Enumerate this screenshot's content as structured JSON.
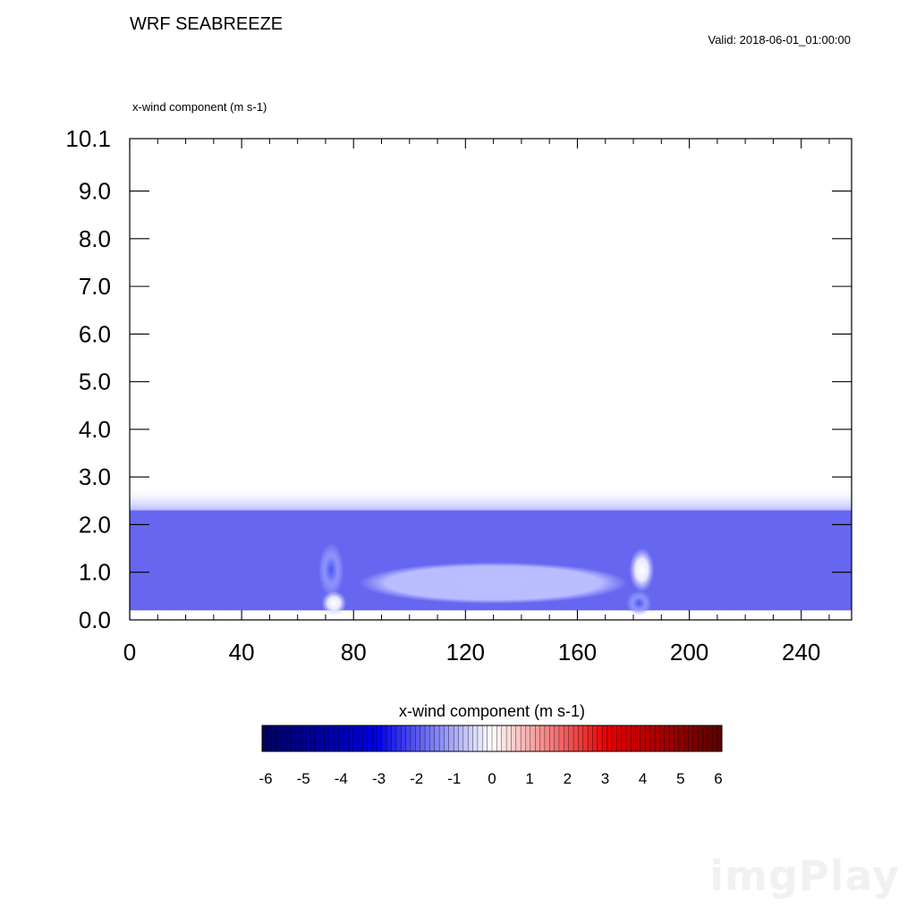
{
  "header": {
    "title": "WRF SEABREEZE",
    "valid": "Valid: 2018-06-01_01:00:00",
    "field_label": "x-wind component   (m s-1)"
  },
  "chart_data": {
    "type": "heatmap",
    "xlim": [
      0,
      258
    ],
    "ylim": [
      0,
      10.1
    ],
    "x_ticks": [
      0,
      40,
      80,
      120,
      160,
      200,
      240
    ],
    "x_tick_labels": [
      "0",
      "40",
      "80",
      "120",
      "160",
      "200",
      "240"
    ],
    "y_ticks": [
      0,
      1,
      2,
      3,
      4,
      5,
      6,
      7,
      8,
      9,
      10.1
    ],
    "y_tick_labels": [
      "0.0",
      "1.0",
      "2.0",
      "3.0",
      "4.0",
      "5.0",
      "6.0",
      "7.0",
      "8.0",
      "9.0",
      "10.1"
    ],
    "field": {
      "units": "m s-1",
      "bottom_layer_top": 0.2,
      "mixed_layer_value": -1.8,
      "mixed_layer_top": 2.3,
      "fade_top": 2.8,
      "features": [
        {
          "x": 72,
          "y_top": 1.5,
          "y_bottom": 0.6,
          "value": -3.2
        },
        {
          "x": 73,
          "y_top": 0.5,
          "y_bottom": 0.2,
          "value": 0.0
        },
        {
          "x": 130,
          "y_top": 1.1,
          "y_bottom": 0.45,
          "value": -1.3
        },
        {
          "x": 183,
          "y_top": 1.4,
          "y_bottom": 0.7,
          "value": 0.0
        },
        {
          "x": 182,
          "y_top": 0.5,
          "y_bottom": 0.2,
          "value": -3.2
        }
      ]
    },
    "colorbar": {
      "title": "x-wind component  (m s-1)",
      "min": -6,
      "max": 6,
      "tick_labels": [
        "-6",
        "-5",
        "-4",
        "-3",
        "-2",
        "-1",
        "0",
        "1",
        "2",
        "3",
        "4",
        "5",
        "6"
      ],
      "low_color": "#00005a",
      "mid_color": "#ffffff",
      "high_color": "#5a0000"
    }
  },
  "watermark": "imgPlay"
}
